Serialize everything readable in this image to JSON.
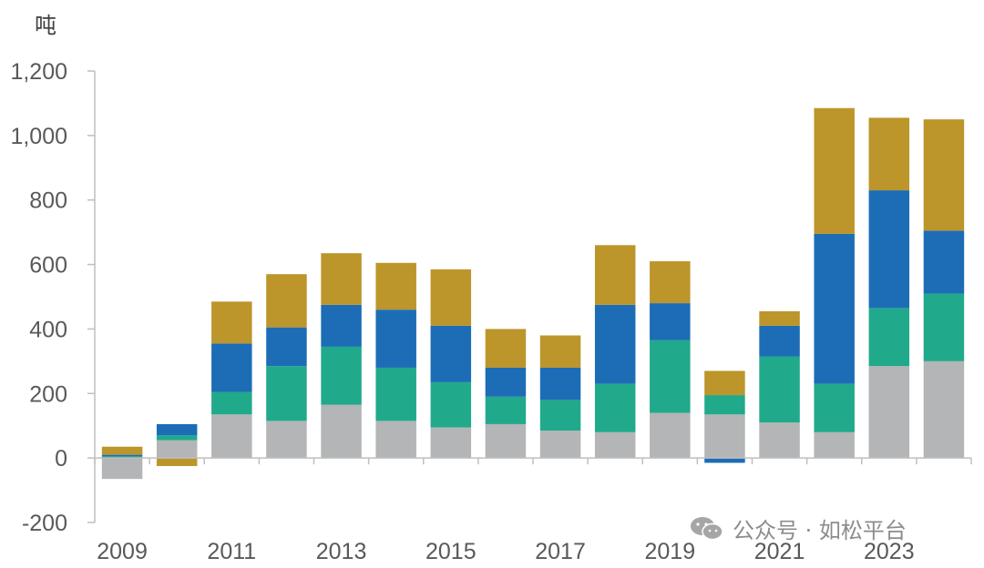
{
  "chart_data": {
    "type": "bar",
    "stacked": true,
    "unit_label": "吨",
    "categories": [
      "2009",
      "2010",
      "2011",
      "2012",
      "2013",
      "2014",
      "2015",
      "2016",
      "2017",
      "2018",
      "2019",
      "2020",
      "2021",
      "2022",
      "2023",
      "2024"
    ],
    "x_tick_labels": [
      "2009",
      "",
      "2011",
      "",
      "2013",
      "",
      "2015",
      "",
      "2017",
      "",
      "2019",
      "",
      "2021",
      "",
      "2023",
      ""
    ],
    "series": [
      {
        "color": "#b3b5b6",
        "values": [
          -65,
          55,
          135,
          115,
          165,
          115,
          95,
          105,
          85,
          80,
          140,
          135,
          110,
          80,
          285,
          300
        ]
      },
      {
        "color": "#21a98b",
        "values": [
          5,
          15,
          70,
          170,
          180,
          165,
          140,
          85,
          95,
          150,
          225,
          60,
          205,
          150,
          180,
          210
        ]
      },
      {
        "color": "#1c6db6",
        "values": [
          5,
          35,
          150,
          120,
          130,
          180,
          175,
          90,
          100,
          245,
          115,
          -15,
          95,
          465,
          365,
          195
        ]
      },
      {
        "color": "#bc952b",
        "values": [
          25,
          -25,
          130,
          165,
          160,
          145,
          175,
          120,
          100,
          185,
          130,
          75,
          45,
          390,
          225,
          345
        ]
      }
    ],
    "ylim": [
      -200,
      1200
    ],
    "y_ticks": [
      -200,
      0,
      200,
      400,
      600,
      800,
      1000,
      1200
    ],
    "y_tick_labels": [
      "-200",
      "0",
      "200",
      "400",
      "600",
      "800",
      "1,000",
      "1,200"
    ],
    "grid": false,
    "legend": "none"
  },
  "watermark": {
    "icon": "wechat-icon",
    "text": "公众号 · 如松平台"
  }
}
